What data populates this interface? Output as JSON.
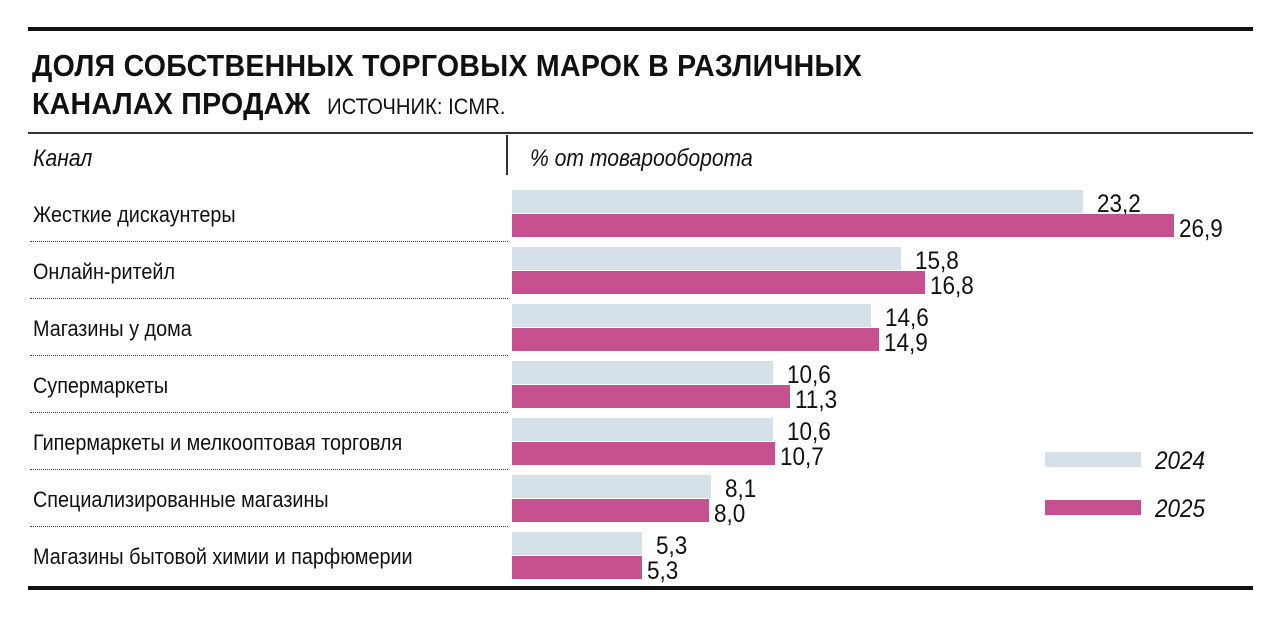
{
  "chart_data": {
    "type": "bar",
    "orientation": "horizontal",
    "title": "ДОЛЯ СОБСТВЕННЫХ ТОРГОВЫХ МАРОК В РАЗЛИЧНЫХ КАНАЛАХ ПРОДАЖ",
    "title_line1": "ДОЛЯ СОБСТВЕННЫХ ТОРГОВЫХ МАРОК В РАЗЛИЧНЫХ",
    "title_line2": "КАНАЛАХ ПРОДАЖ",
    "source": "ИСТОЧНИК: ICMR.",
    "category_header": "Канал",
    "value_header": "% от товарооборота",
    "categories": [
      "Жесткие дискаунтеры",
      "Онлайн-ритейл",
      "Магазины у дома",
      "Супермаркеты",
      "Гипермаркеты и мелкооптовая торговля",
      "Специализированные магазины",
      "Магазины бытовой химии и парфюмерии"
    ],
    "series": [
      {
        "name": "2024",
        "color": "#d5e0e8",
        "values": [
          23.2,
          15.8,
          14.6,
          10.6,
          10.6,
          8.1,
          5.3
        ],
        "labels": [
          "23,2",
          "15,8",
          "14,6",
          "10,6",
          "10,6",
          "8,1",
          "5,3"
        ]
      },
      {
        "name": "2025",
        "color": "#c65190",
        "values": [
          26.9,
          16.8,
          14.9,
          11.3,
          10.7,
          8.0,
          5.3
        ],
        "labels": [
          "26,9",
          "16,8",
          "14,9",
          "11,3",
          "10,7",
          "8,0",
          "5,3"
        ]
      }
    ],
    "xlim": [
      0,
      26.9
    ],
    "grid": false,
    "legend": "right"
  }
}
